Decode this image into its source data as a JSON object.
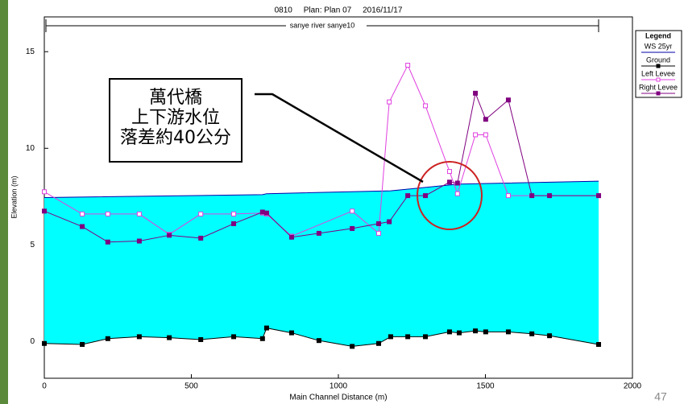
{
  "chart_data": {
    "type": "line",
    "title": "0810     Plan: Plan 07     2016/11/17",
    "subtitle": "sanye river sanye10",
    "x_label": "Main Channel Distance (m)",
    "y_label": "Elevation (m)",
    "xlim": [
      0,
      2000
    ],
    "xticks": [
      0,
      500,
      1000,
      1500,
      2000
    ],
    "ylim": [
      -1.9,
      16.8
    ],
    "yticks": [
      0,
      5,
      10,
      15
    ],
    "legend_title": "Legend",
    "legend_position": "right",
    "water_fill_color": "#00ffff",
    "series": [
      {
        "name": "WS  25yr",
        "color": "#0000aa",
        "marker": "none",
        "x": [
          0,
          742,
          756,
          1178,
          1378,
          1411,
          1885
        ],
        "values": [
          7.45,
          7.6,
          7.65,
          7.8,
          8.1,
          8.15,
          8.3
        ]
      },
      {
        "name": "Ground",
        "color": "#000000",
        "marker": "filled",
        "x": [
          0,
          129,
          216,
          323,
          425,
          532,
          644,
          742,
          756,
          841,
          934,
          1047,
          1137,
          1178,
          1236,
          1296,
          1378,
          1411,
          1466,
          1501,
          1578,
          1658,
          1718,
          1885
        ],
        "values": [
          -0.1,
          -0.15,
          0.15,
          0.25,
          0.2,
          0.1,
          0.25,
          0.15,
          0.7,
          0.45,
          0.05,
          -0.25,
          -0.1,
          0.25,
          0.25,
          0.25,
          0.5,
          0.45,
          0.55,
          0.5,
          0.5,
          0.4,
          0.3,
          -0.15
        ]
      },
      {
        "name": "Left Levee",
        "color": "#e040e0",
        "marker": "open",
        "x": [
          0,
          129,
          216,
          323,
          425,
          532,
          644,
          742,
          756,
          841,
          1047,
          1137,
          1173,
          1236,
          1296,
          1378,
          1405,
          1466,
          1501,
          1578,
          1885
        ],
        "values": [
          7.75,
          6.6,
          6.6,
          6.6,
          5.55,
          6.6,
          6.6,
          6.65,
          6.6,
          5.45,
          6.75,
          5.6,
          12.4,
          14.3,
          12.2,
          8.8,
          7.65,
          10.7,
          10.7,
          7.55,
          7.55
        ]
      },
      {
        "name": "Right Levee",
        "color": "#800080",
        "marker": "filled",
        "x": [
          0,
          129,
          216,
          323,
          425,
          532,
          644,
          742,
          756,
          841,
          934,
          1047,
          1137,
          1173,
          1236,
          1296,
          1378,
          1405,
          1466,
          1501,
          1578,
          1658,
          1718,
          1885
        ],
        "values": [
          6.75,
          5.95,
          5.15,
          5.2,
          5.5,
          5.35,
          6.1,
          6.7,
          6.65,
          5.4,
          5.6,
          5.85,
          6.1,
          6.2,
          7.55,
          7.55,
          8.25,
          8.2,
          12.85,
          11.5,
          12.5,
          7.55,
          7.55,
          7.55
        ]
      }
    ],
    "annotations": [
      "萬代橋",
      "上下游水位",
      "落差約40公分"
    ]
  },
  "page_number": 47
}
